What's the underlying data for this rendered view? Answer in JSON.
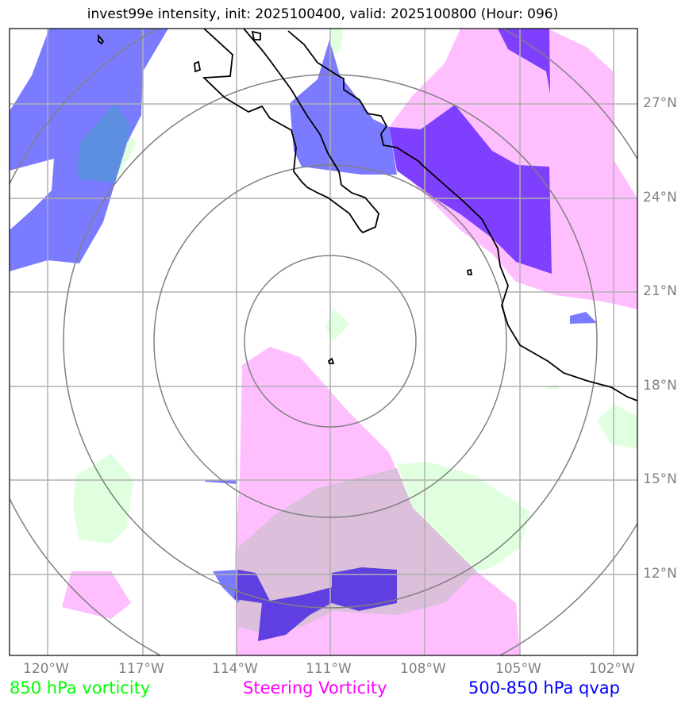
{
  "title": "invest99e intensity, init: 2025100400, valid: 2025100800 (Hour: 096)",
  "lon_ticks": [
    "120°W",
    "117°W",
    "114°W",
    "111°W",
    "108°W",
    "105°W",
    "102°W"
  ],
  "lat_ticks": [
    "27°N",
    "24°N",
    "21°N",
    "18°N",
    "15°N",
    "12°N"
  ],
  "legend": {
    "vort850": {
      "label": "850 hPa vorticity",
      "color": "#00ff00"
    },
    "steering": {
      "label": "Steering Vorticity",
      "color": "#ff00ff"
    },
    "qvap": {
      "label": "500-850 hPa qvap",
      "color": "#0000ff"
    }
  }
}
